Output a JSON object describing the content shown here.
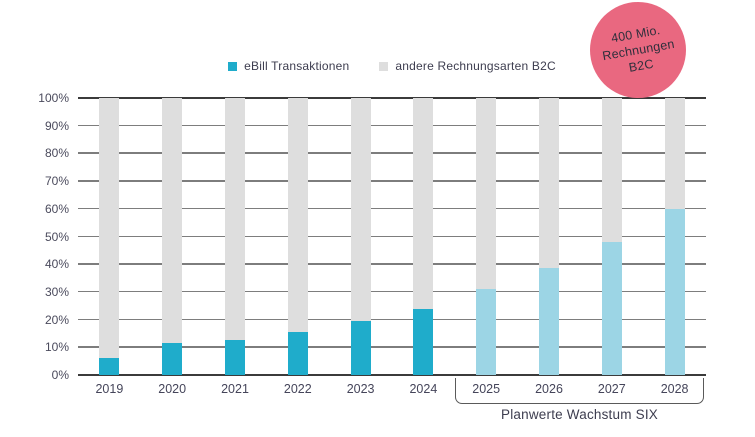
{
  "chart_data": {
    "type": "bar",
    "stacked": true,
    "title": "",
    "xlabel": "",
    "ylabel": "",
    "categories": [
      "2019",
      "2020",
      "2021",
      "2022",
      "2023",
      "2024",
      "2025",
      "2026",
      "2027",
      "2028"
    ],
    "series": [
      {
        "name": "eBill Transaktionen",
        "values": [
          6,
          11.7,
          12.5,
          15.5,
          19.5,
          24,
          31,
          38.5,
          48,
          60
        ]
      },
      {
        "name": "andere Rechnungsarten B2C",
        "values": [
          94,
          88.3,
          87.5,
          84.5,
          80.5,
          76,
          69,
          61.5,
          52,
          40
        ]
      }
    ],
    "unit": "%",
    "ylim": [
      0,
      100
    ],
    "y_ticks": [
      "100%",
      "90%",
      "80%",
      "70%",
      "60%",
      "50%",
      "40%",
      "30%",
      "20%",
      "10%",
      "0%"
    ],
    "forecast_categories": [
      "2025",
      "2026",
      "2027",
      "2028"
    ],
    "grid": true,
    "legend_position": "top",
    "colors": {
      "ebill_actual": "#1FACCB",
      "ebill_forecast": "#9CD5E5",
      "other": "#DEDEDE",
      "badge": "#E96880"
    },
    "annotations": {
      "badge_lines": [
        "400 Mio.",
        "Rechnungen",
        "B2C"
      ],
      "bracket_label": "Planwerte Wachstum SIX"
    }
  }
}
